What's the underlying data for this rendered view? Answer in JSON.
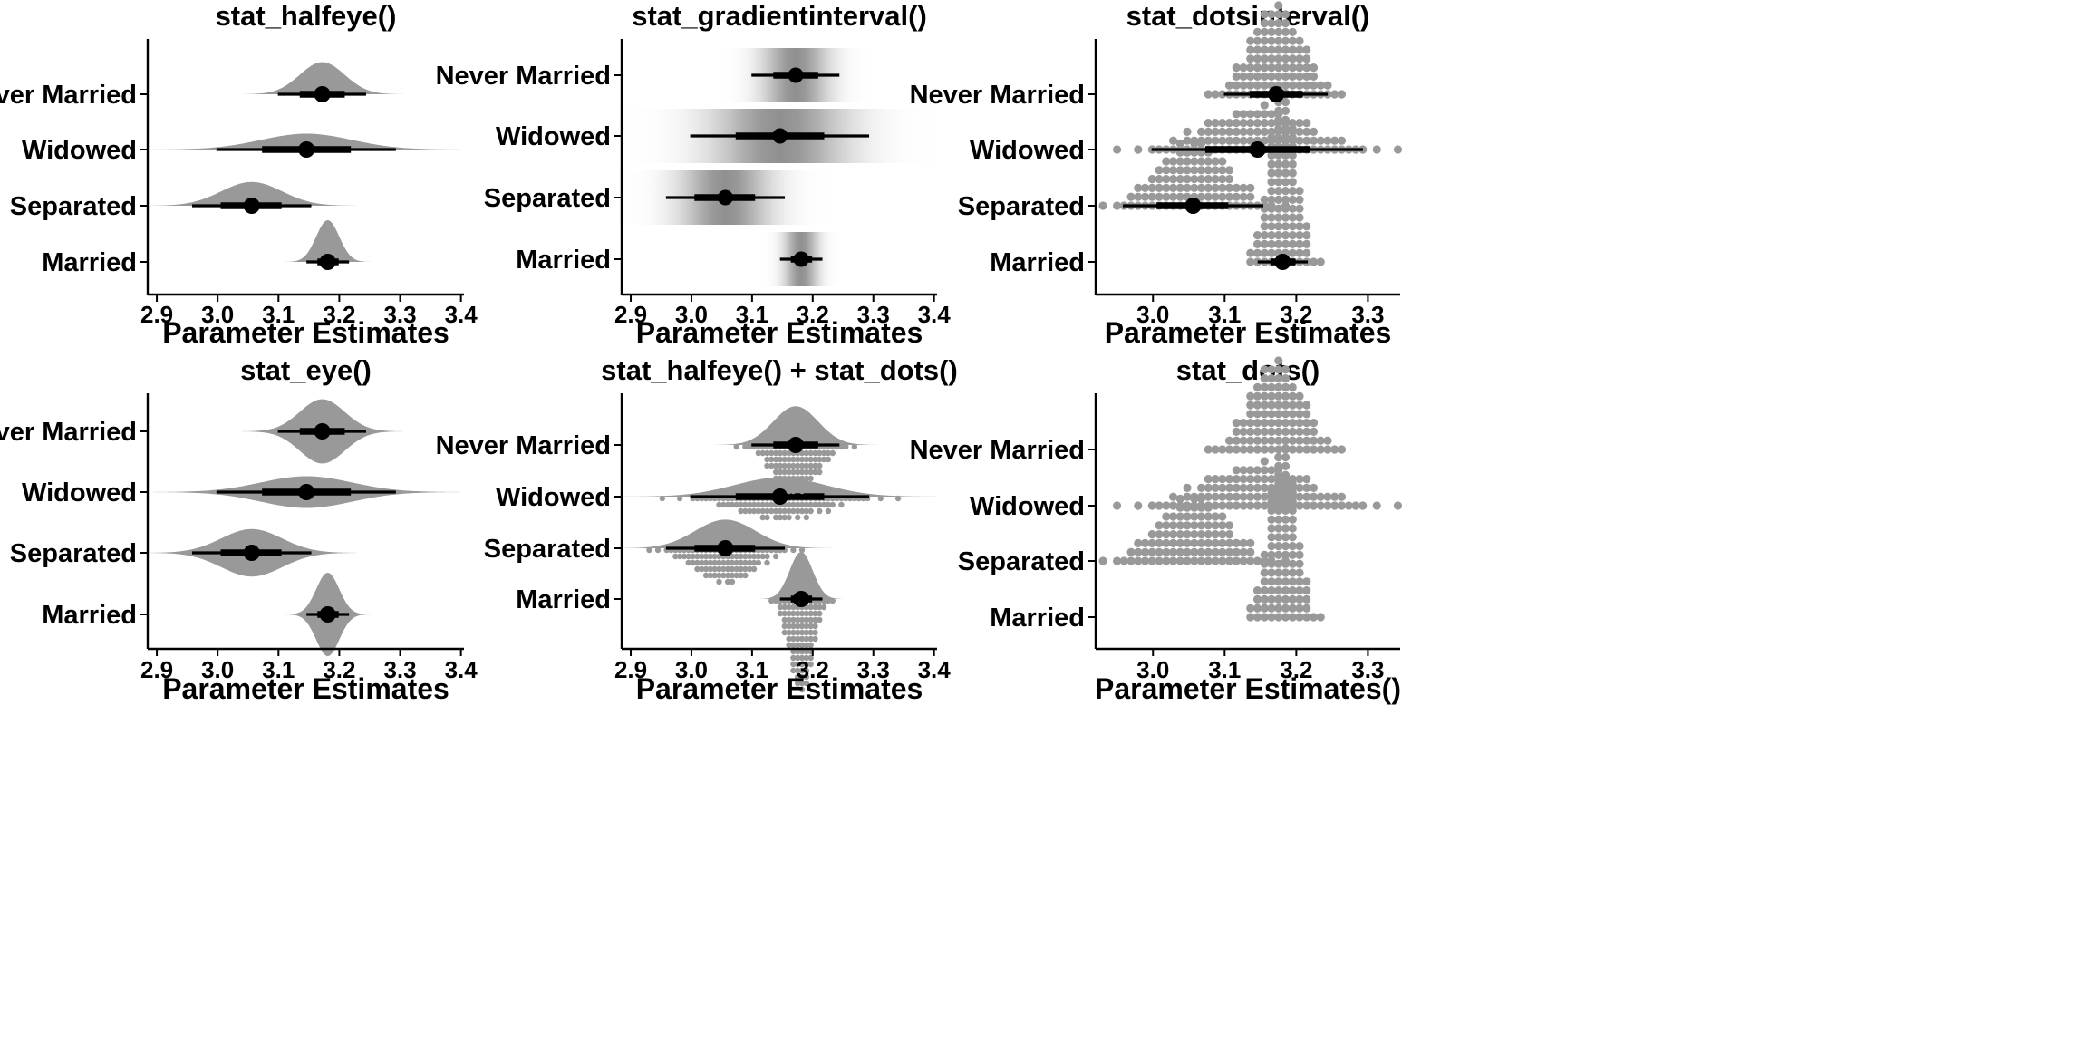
{
  "figure": {
    "xlabel_default": "Parameter Estimates"
  },
  "chart_data": [
    {
      "id": "p1",
      "type": "halfeye",
      "title": "stat_halfeye()",
      "xlabel": "Parameter Estimates",
      "xlim": [
        2.885,
        3.405
      ],
      "xticks": [
        "2.9",
        "3.0",
        "3.1",
        "3.2",
        "3.3",
        "3.4"
      ],
      "categories": [
        "Married",
        "Separated",
        "Widowed",
        "Never Married"
      ],
      "point": [
        3.181,
        3.056,
        3.146,
        3.172
      ],
      "interval_66": [
        [
          3.164,
          3.199
        ],
        [
          3.005,
          3.105
        ],
        [
          3.073,
          3.219
        ],
        [
          3.135,
          3.209
        ]
      ],
      "interval_95": [
        [
          3.146,
          3.216
        ],
        [
          2.958,
          3.154
        ],
        [
          2.998,
          3.293
        ],
        [
          3.099,
          3.244
        ]
      ],
      "sd": [
        0.019,
        0.05,
        0.075,
        0.037
      ],
      "grid": false,
      "fill_color": "#999999"
    },
    {
      "id": "p2",
      "type": "gradientinterval",
      "title": "stat_gradientinterval()",
      "xlabel": "Parameter Estimates",
      "xlim": [
        2.885,
        3.405
      ],
      "xticks": [
        "2.9",
        "3.0",
        "3.1",
        "3.2",
        "3.3",
        "3.4"
      ],
      "categories": [
        "Married",
        "Separated",
        "Widowed",
        "Never Married"
      ],
      "point": [
        3.181,
        3.056,
        3.146,
        3.172
      ],
      "interval_66": [
        [
          3.164,
          3.199
        ],
        [
          3.005,
          3.105
        ],
        [
          3.073,
          3.219
        ],
        [
          3.135,
          3.209
        ]
      ],
      "interval_95": [
        [
          3.146,
          3.216
        ],
        [
          2.958,
          3.154
        ],
        [
          2.998,
          3.293
        ],
        [
          3.099,
          3.244
        ]
      ],
      "sd": [
        0.019,
        0.05,
        0.075,
        0.037
      ],
      "grid": false,
      "fill_color": "#999999"
    },
    {
      "id": "p3",
      "type": "dotsinterval",
      "title": "stat_dotsinterval()",
      "xlabel": "Parameter Estimates",
      "xlim": [
        2.92,
        3.345
      ],
      "xticks": [
        "3.0",
        "3.1",
        "3.2",
        "3.3"
      ],
      "categories": [
        "Married",
        "Separated",
        "Widowed",
        "Never Married"
      ],
      "point": [
        3.181,
        3.056,
        3.146,
        3.172
      ],
      "interval_66": [
        [
          3.164,
          3.199
        ],
        [
          3.005,
          3.105
        ],
        [
          3.073,
          3.219
        ],
        [
          3.135,
          3.209
        ]
      ],
      "interval_95": [
        [
          3.146,
          3.216
        ],
        [
          2.958,
          3.154
        ],
        [
          2.998,
          3.293
        ],
        [
          3.099,
          3.244
        ]
      ],
      "sd": [
        0.019,
        0.05,
        0.075,
        0.037
      ],
      "grid": false,
      "fill_color": "#999999"
    },
    {
      "id": "p4",
      "type": "eye",
      "title": "stat_eye()",
      "xlabel": "Parameter Estimates",
      "xlim": [
        2.885,
        3.405
      ],
      "xticks": [
        "2.9",
        "3.0",
        "3.1",
        "3.2",
        "3.3",
        "3.4"
      ],
      "categories": [
        "Married",
        "Separated",
        "Widowed",
        "Never Married"
      ],
      "point": [
        3.181,
        3.056,
        3.146,
        3.172
      ],
      "interval_66": [
        [
          3.164,
          3.199
        ],
        [
          3.005,
          3.105
        ],
        [
          3.073,
          3.219
        ],
        [
          3.135,
          3.209
        ]
      ],
      "interval_95": [
        [
          3.146,
          3.216
        ],
        [
          2.958,
          3.154
        ],
        [
          2.998,
          3.293
        ],
        [
          3.099,
          3.244
        ]
      ],
      "sd": [
        0.019,
        0.05,
        0.075,
        0.037
      ],
      "grid": false,
      "fill_color": "#999999"
    },
    {
      "id": "p5",
      "type": "halfeye_dots",
      "title": "stat_halfeye() + stat_dots()",
      "xlabel": "Parameter Estimates",
      "xlim": [
        2.885,
        3.405
      ],
      "xticks": [
        "2.9",
        "3.0",
        "3.1",
        "3.2",
        "3.3",
        "3.4"
      ],
      "categories": [
        "Married",
        "Separated",
        "Widowed",
        "Never Married"
      ],
      "point": [
        3.181,
        3.056,
        3.146,
        3.172
      ],
      "interval_66": [
        [
          3.164,
          3.199
        ],
        [
          3.005,
          3.105
        ],
        [
          3.073,
          3.219
        ],
        [
          3.135,
          3.209
        ]
      ],
      "interval_95": [
        [
          3.146,
          3.216
        ],
        [
          2.958,
          3.154
        ],
        [
          2.998,
          3.293
        ],
        [
          3.099,
          3.244
        ]
      ],
      "sd": [
        0.019,
        0.05,
        0.075,
        0.037
      ],
      "grid": false,
      "fill_color": "#999999"
    },
    {
      "id": "p6",
      "type": "dots",
      "title": "stat_dots()",
      "xlabel": "Parameter Estimates()",
      "xlim": [
        2.92,
        3.345
      ],
      "xticks": [
        "3.0",
        "3.1",
        "3.2",
        "3.3"
      ],
      "categories": [
        "Married",
        "Separated",
        "Widowed",
        "Never Married"
      ],
      "point": [
        3.181,
        3.056,
        3.146,
        3.172
      ],
      "sd": [
        0.019,
        0.05,
        0.075,
        0.037
      ],
      "grid": false,
      "fill_color": "#999999"
    }
  ]
}
